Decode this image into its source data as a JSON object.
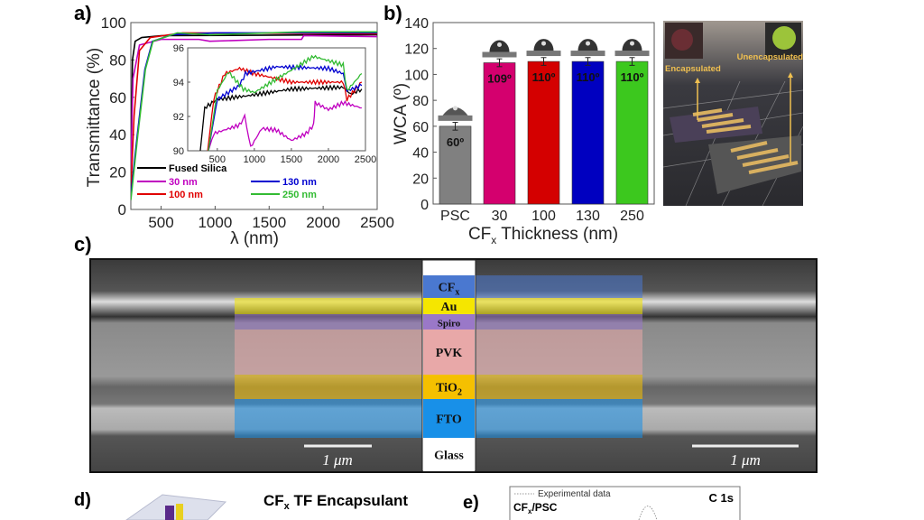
{
  "panels": {
    "a": "a)",
    "b": "b)",
    "c": "c)",
    "d": "d)",
    "e": "e)"
  },
  "chart_data": [
    {
      "type": "line",
      "panel": "a",
      "xlabel": "λ (nm)",
      "ylabel": "Transmittance (%)",
      "xlim": [
        220,
        2500
      ],
      "ylim": [
        0,
        100
      ],
      "xticks": [
        "500",
        "1000",
        "1500",
        "2000",
        "2500"
      ],
      "yticks": [
        "0",
        "20",
        "40",
        "60",
        "80",
        "100"
      ],
      "legend_placement": "bottom-left",
      "series": [
        {
          "name": "Fused Silica",
          "color": "#000000",
          "points": [
            [
              220,
              15
            ],
            [
              235,
              80
            ],
            [
              260,
              90
            ],
            [
              320,
              92
            ],
            [
              500,
              93
            ],
            [
              2500,
              93.5
            ]
          ]
        },
        {
          "name": "30 nm",
          "color": "#c000c0",
          "points": [
            [
              220,
              20
            ],
            [
              240,
              70
            ],
            [
              300,
              88
            ],
            [
              500,
              91
            ],
            [
              850,
              91
            ],
            [
              950,
              90
            ],
            [
              1500,
              91
            ],
            [
              1800,
              91
            ],
            [
              1820,
              93
            ],
            [
              2500,
              92.5
            ]
          ]
        },
        {
          "name": "100 nm",
          "color": "#e00000",
          "points": [
            [
              220,
              10
            ],
            [
              250,
              50
            ],
            [
              300,
              85
            ],
            [
              400,
              92
            ],
            [
              700,
              94.5
            ],
            [
              2500,
              94
            ]
          ]
        },
        {
          "name": "130 nm",
          "color": "#0000d0",
          "points": [
            [
              220,
              8
            ],
            [
              280,
              40
            ],
            [
              350,
              75
            ],
            [
              420,
              90
            ],
            [
              600,
              93.5
            ],
            [
              1000,
              94.5
            ],
            [
              2500,
              94.5
            ]
          ]
        },
        {
          "name": "250 nm",
          "color": "#33bb33",
          "points": [
            [
              220,
              5
            ],
            [
              285,
              40
            ],
            [
              355,
              75
            ],
            [
              425,
              90
            ],
            [
              650,
              94.5
            ],
            [
              950,
              93.5
            ],
            [
              1800,
              95
            ],
            [
              2500,
              95
            ]
          ]
        }
      ],
      "inset": {
        "xlim": [
          100,
          2500
        ],
        "ylim": [
          90,
          96
        ],
        "xticks": [
          "500",
          "1000",
          "1500",
          "2000",
          "2500"
        ],
        "yticks": [
          "90",
          "92",
          "94",
          "96"
        ],
        "series": [
          {
            "name": "Fused Silica",
            "points": [
              [
                270,
                90
              ],
              [
                330,
                92.5
              ],
              [
                500,
                93
              ],
              [
                900,
                93.2
              ],
              [
                1500,
                93.6
              ],
              [
                2200,
                93.7
              ],
              [
                2300,
                93.3
              ],
              [
                2450,
                93.6
              ]
            ]
          },
          {
            "name": "30 nm",
            "points": [
              [
                380,
                90
              ],
              [
                450,
                91
              ],
              [
                800,
                91.5
              ],
              [
                870,
                92
              ],
              [
                950,
                90.2
              ],
              [
                1100,
                91.3
              ],
              [
                1300,
                91.2
              ],
              [
                1500,
                90.6
              ],
              [
                1700,
                91
              ],
              [
                1800,
                91.5
              ],
              [
                1820,
                92.8
              ],
              [
                2000,
                92.4
              ],
              [
                2200,
                92.8
              ],
              [
                2450,
                92.5
              ]
            ]
          },
          {
            "name": "100 nm",
            "points": [
              [
                370,
                90
              ],
              [
                450,
                93
              ],
              [
                600,
                94.5
              ],
              [
                800,
                94.8
              ],
              [
                1000,
                94.5
              ],
              [
                1500,
                94
              ],
              [
                2200,
                94
              ],
              [
                2250,
                93
              ],
              [
                2450,
                94
              ]
            ]
          },
          {
            "name": "130 nm",
            "points": [
              [
                380,
                90
              ],
              [
                500,
                93
              ],
              [
                800,
                93.8
              ],
              [
                880,
                94.5
              ],
              [
                1300,
                94.9
              ],
              [
                2000,
                94.8
              ],
              [
                2200,
                94.5
              ],
              [
                2250,
                93.5
              ],
              [
                2450,
                93.8
              ]
            ]
          },
          {
            "name": "250 nm",
            "points": [
              [
                380,
                90
              ],
              [
                500,
                93.5
              ],
              [
                650,
                94.6
              ],
              [
                850,
                93.6
              ],
              [
                1000,
                93.4
              ],
              [
                1500,
                94.7
              ],
              [
                1800,
                95.5
              ],
              [
                2200,
                95
              ],
              [
                2250,
                93.5
              ],
              [
                2450,
                94.5
              ]
            ]
          }
        ]
      }
    },
    {
      "type": "bar",
      "panel": "b",
      "xlabel": "CFx Thickness (nm)",
      "xlabel_main": "CF",
      "xlabel_sub": "x",
      "xlabel_rest": " Thickness (nm)",
      "ylabel": "WCA (º)",
      "ylim": [
        0,
        140
      ],
      "yticks": [
        "0",
        "20",
        "40",
        "60",
        "80",
        "100",
        "120",
        "140"
      ],
      "categories": [
        "PSC",
        "30",
        "100",
        "130",
        "250"
      ],
      "values": [
        60,
        109,
        110,
        110,
        110
      ],
      "errors": [
        3,
        3,
        3,
        3,
        3
      ],
      "data_labels": [
        "60º",
        "109º",
        "110º",
        "110º",
        "110º"
      ],
      "colors": [
        "#808080",
        "#d4006e",
        "#d40000",
        "#0000c0",
        "#3cc81e"
      ]
    }
  ],
  "photo": {
    "label_left": "Encapsulated",
    "label_right": "Unencapsulated"
  },
  "sem": {
    "layers": [
      "CFx",
      "Au",
      "Spiro",
      "PVK",
      "TiO2",
      "FTO",
      "Glass"
    ],
    "layer_colors": [
      "#4a78d0",
      "#f5e600",
      "#9a78c8",
      "#e8a8a8",
      "#f5c000",
      "#1890e8",
      "#ffffff"
    ],
    "scale_left": "1 μm",
    "scale_right": "1 μm"
  },
  "panel_d": {
    "title_main": "CF",
    "title_sub": "x",
    "title_rest": " TF Encapsulant"
  },
  "panel_e": {
    "legend": "Experimental data",
    "sample_main": "CF",
    "sample_sub": "x",
    "sample_rest": "/PSC",
    "peak": "C 1s"
  }
}
